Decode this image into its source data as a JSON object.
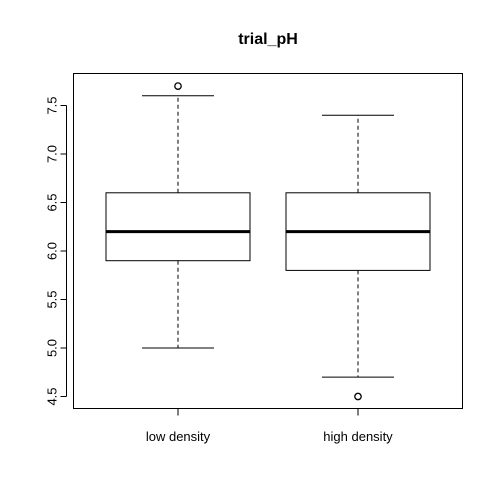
{
  "chart_data": {
    "type": "boxplot",
    "title": "trial_pH",
    "xlabel": "",
    "ylabel": "",
    "ylim": [
      4.45,
      7.75
    ],
    "y_ticks": [
      4.5,
      5.0,
      5.5,
      6.0,
      6.5,
      7.0,
      7.5
    ],
    "y_tick_labels": [
      "4.5",
      "5.0",
      "5.5",
      "6.0",
      "6.5",
      "7.0",
      "7.5"
    ],
    "categories": [
      "low density",
      "high density"
    ],
    "boxes": [
      {
        "name": "low density",
        "whisker_low": 5.0,
        "q1": 5.9,
        "median": 6.2,
        "q3": 6.6,
        "whisker_high": 7.6,
        "outliers": [
          7.7
        ]
      },
      {
        "name": "high density",
        "whisker_low": 4.7,
        "q1": 5.8,
        "median": 6.2,
        "q3": 6.6,
        "whisker_high": 7.4,
        "outliers": [
          4.5
        ]
      }
    ],
    "grid": false
  }
}
